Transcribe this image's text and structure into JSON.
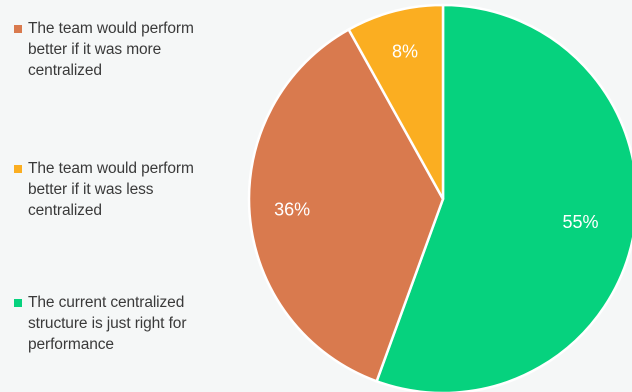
{
  "chart_data": {
    "type": "pie",
    "title": "",
    "legend_position": "left",
    "slices": [
      {
        "label": "The team would perform\nbetter if it was more\ncentralized",
        "value": 36,
        "display": "36%",
        "color": "#d97a4e"
      },
      {
        "label": "The team would perform\nbetter if it was less\ncentralized",
        "value": 8,
        "display": "8%",
        "color": "#fbae21"
      },
      {
        "label": "The current centralized\nstructure is just right for\nperformance",
        "value": 55,
        "display": "55%",
        "color": "#06d27e"
      }
    ]
  }
}
